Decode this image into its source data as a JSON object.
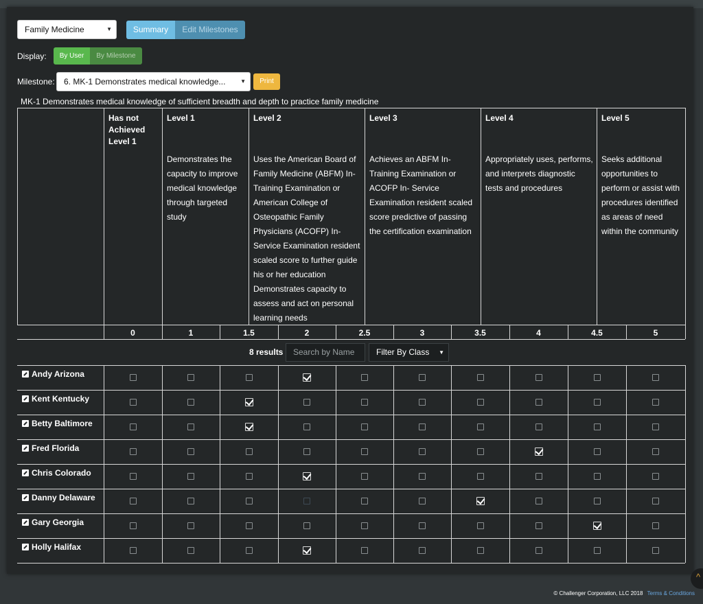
{
  "program_select": {
    "value": "Family Medicine"
  },
  "view_tabs": {
    "summary": "Summary",
    "edit": "Edit Milestones"
  },
  "display": {
    "label": "Display:",
    "by_user": "By User",
    "by_milestone": "By Milestone"
  },
  "milestone": {
    "label": "Milestone:",
    "value": "6. MK-1 Demonstrates medical knowledge...",
    "print": "Print"
  },
  "milestone_description": "MK-1 Demonstrates medical knowledge of sufficient breadth and depth to practice family medicine",
  "levels": [
    {
      "title": "Has not Achieved Level 1",
      "text": ""
    },
    {
      "title": "Level 1",
      "text": "Demonstrates the capacity to improve medical knowledge through targeted study"
    },
    {
      "title": "Level 2",
      "text": "Uses the American Board of Family Medicine (ABFM) In-Training Examination or American College of Osteopathic Family Physicians (ACOFP) In-Service Examination resident scaled score to further guide his or her education Demonstrates capacity to assess and act on personal learning needs"
    },
    {
      "title": "Level 3",
      "text": "Achieves an ABFM In-Training Examination or ACOFP In- Service Examination resident scaled score predictive of passing the certification examination"
    },
    {
      "title": "Level 4",
      "text": "Appropriately uses, performs, and interprets diagnostic tests and procedures"
    },
    {
      "title": "Level 5",
      "text": "Seeks additional opportunities to perform or assist with procedures identified as areas of need within the community"
    }
  ],
  "scale": [
    "0",
    "1",
    "1.5",
    "2",
    "2.5",
    "3",
    "3.5",
    "4",
    "4.5",
    "5"
  ],
  "filters": {
    "results": "8 results |",
    "search_placeholder": "Search by Name",
    "filter_by_class": "Filter By Class"
  },
  "users": [
    {
      "name": "Andy Arizona",
      "score": "2"
    },
    {
      "name": "Kent Kentucky",
      "score": "1.5"
    },
    {
      "name": "Betty Baltimore",
      "score": "1.5"
    },
    {
      "name": "Fred Florida",
      "score": "4"
    },
    {
      "name": "Chris Colorado",
      "score": "2"
    },
    {
      "name": "Danny Delaware",
      "score": "3.5"
    },
    {
      "name": "Gary Georgia",
      "score": "4.5"
    },
    {
      "name": "Holly Halifax",
      "score": "2"
    }
  ],
  "footer": {
    "copyright": "© Challenger Corporation, LLC 2018",
    "terms": "Terms & Conditions"
  },
  "colors": {
    "summary_tab": "#6fbde3",
    "edit_tab": "#4e8fb0",
    "by_user": "#59b84d",
    "by_milestone": "#4a8a42",
    "print": "#eeb73f",
    "panel": "#242728"
  }
}
